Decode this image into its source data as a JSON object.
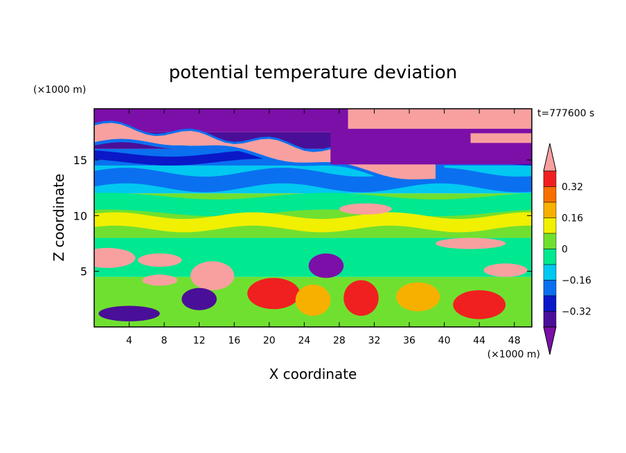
{
  "chart_data": {
    "type": "heatmap",
    "title": "potential temperature deviation",
    "xlabel": "X coordinate",
    "ylabel": "Z coordinate",
    "x_unit": "(×1000 m)",
    "y_unit": "(×1000 m)",
    "time_label": "t=777600 s",
    "xlim": [
      0,
      50
    ],
    "ylim": [
      0,
      19.6
    ],
    "x_ticks": [
      4,
      8,
      12,
      16,
      20,
      24,
      28,
      32,
      36,
      40,
      44,
      48
    ],
    "y_ticks": [
      5,
      10,
      15
    ],
    "colorbar": {
      "levels": [
        -0.4,
        -0.32,
        -0.24,
        -0.16,
        -0.08,
        0,
        0.08,
        0.16,
        0.24,
        0.32,
        0.4
      ],
      "tick_labels": [
        "0.32",
        "0.16",
        "0",
        "−0.16",
        "−0.32"
      ],
      "tick_values": [
        0.32,
        0.16,
        0,
        -0.16,
        -0.32
      ],
      "colors": [
        "#7b0fa8",
        "#4a0f98",
        "#0a18c8",
        "#0a70f0",
        "#00c8f0",
        "#00e890",
        "#70e030",
        "#f0f000",
        "#f8b000",
        "#f87000",
        "#f02020",
        "#f8a0a0"
      ],
      "extend": "both"
    },
    "field_description_bands": [
      {
        "z_from": 17.5,
        "z_to": 19.6,
        "dominant": "purple/pink mix"
      },
      {
        "z_from": 12,
        "z_to": 17.5,
        "dominant": "pink layer over blue"
      },
      {
        "z_from": 8,
        "z_to": 12,
        "dominant": "green/cyan"
      },
      {
        "z_from": 4.5,
        "z_to": 8,
        "dominant": "mixed with pink patches"
      },
      {
        "z_from": 0,
        "z_to": 4.5,
        "dominant": "turbulent red/yellow/blue"
      }
    ]
  }
}
